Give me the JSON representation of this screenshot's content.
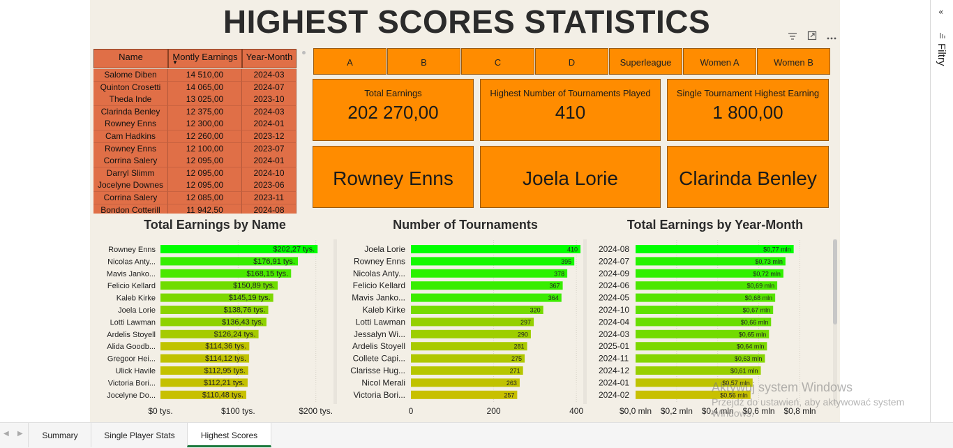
{
  "report": {
    "title": "HIGHEST SCORES STATISTICS"
  },
  "table": {
    "headers": [
      "Name",
      "Montly Earnings",
      "Year-Month"
    ],
    "rows": [
      [
        "Salome Diben",
        "14 510,00",
        "2024-03"
      ],
      [
        "Quinton Crosetti",
        "14 065,00",
        "2024-07"
      ],
      [
        "Theda Inde",
        "13 025,00",
        "2023-10"
      ],
      [
        "Clarinda Benley",
        "12 375,00",
        "2024-03"
      ],
      [
        "Rowney Enns",
        "12 300,00",
        "2024-01"
      ],
      [
        "Cam Hadkins",
        "12 260,00",
        "2023-12"
      ],
      [
        "Rowney Enns",
        "12 100,00",
        "2023-07"
      ],
      [
        "Corrina Salery",
        "12 095,00",
        "2024-01"
      ],
      [
        "Darryl Slimm",
        "12 095,00",
        "2024-10"
      ],
      [
        "Jocelyne Downes",
        "12 095,00",
        "2023-06"
      ],
      [
        "Corrina Salery",
        "12 085,00",
        "2023-11"
      ],
      [
        "Bondon Cotterill",
        "11 942,50",
        "2024-08"
      ]
    ]
  },
  "slicer": {
    "options": [
      "A",
      "B",
      "C",
      "D",
      "Superleague",
      "Women A",
      "Women B"
    ]
  },
  "cards": [
    {
      "label": "Total Earnings",
      "value": "202 270,00"
    },
    {
      "label": "Highest Number of Tournaments Played",
      "value": "410"
    },
    {
      "label": "Single Tournament Highest Earning",
      "value": "1 800,00"
    }
  ],
  "name_cards": [
    "Rowney Enns",
    "Joela Lorie",
    "Clarinda Benley"
  ],
  "chart_data": [
    {
      "type": "bar",
      "title": "Total Earnings by Name",
      "orientation": "horizontal",
      "categories": [
        "Rowney Enns",
        "Nicolas Anty...",
        "Mavis Janko...",
        "Felicio Kellard",
        "Kaleb Kirke",
        "Joela Lorie",
        "Lotti Lawman",
        "Ardelis Stoyell",
        "Alida Goodb...",
        "Gregoor Hei...",
        "Ulick Havile",
        "Victoria Bori...",
        "Jocelyne Do..."
      ],
      "values": [
        202.27,
        176.91,
        168.15,
        150.89,
        145.19,
        138.76,
        136.43,
        126.24,
        114.36,
        114.12,
        112.95,
        112.21,
        110.48
      ],
      "data_labels": [
        "$202,27 tys.",
        "$176,91 tys.",
        "$168,15 tys.",
        "$150,89 tys.",
        "$145,19 tys.",
        "$138,76 tys.",
        "$136,43 tys.",
        "$126,24 tys.",
        "$114,36 tys.",
        "$114,12 tys.",
        "$112,95 tys.",
        "$112,21 tys.",
        "$110,48 tys."
      ],
      "ticks": [
        "$0 tys.",
        "$100 tys.",
        "$200 tys."
      ],
      "tick_values": [
        0,
        100,
        200
      ],
      "xlim": [
        0,
        220
      ]
    },
    {
      "type": "bar",
      "title": "Number of Tournaments",
      "orientation": "horizontal",
      "categories": [
        "Joela Lorie",
        "Rowney Enns",
        "Nicolas Anty...",
        "Felicio Kellard",
        "Mavis Janko...",
        "Kaleb Kirke",
        "Lotti Lawman",
        "Jessalyn Wi...",
        "Ardelis Stoyell",
        "Collete Capi...",
        "Clarisse Hug...",
        "Nicol Merali",
        "Victoria Bori..."
      ],
      "values": [
        410,
        395,
        378,
        367,
        364,
        320,
        297,
        290,
        281,
        275,
        271,
        263,
        257
      ],
      "data_labels": [
        "410",
        "395",
        "378",
        "367",
        "364",
        "320",
        "297",
        "290",
        "281",
        "275",
        "271",
        "263",
        "257"
      ],
      "ticks": [
        "0",
        "200",
        "400"
      ],
      "tick_values": [
        0,
        200,
        400
      ],
      "xlim": [
        0,
        420
      ]
    },
    {
      "type": "bar",
      "title": "Total Earnings by Year-Month",
      "orientation": "horizontal",
      "categories": [
        "2024-08",
        "2024-07",
        "2024-09",
        "2024-06",
        "2024-05",
        "2024-10",
        "2024-04",
        "2024-03",
        "2025-01",
        "2024-11",
        "2024-12",
        "2024-01",
        "2024-02"
      ],
      "values": [
        0.77,
        0.73,
        0.72,
        0.69,
        0.68,
        0.67,
        0.66,
        0.65,
        0.64,
        0.63,
        0.61,
        0.57,
        0.56
      ],
      "data_labels": [
        "$0,77 mln",
        "$0,73 mln",
        "$0,72 mln",
        "$0,69 mln",
        "$0,68 mln",
        "$0,67 mln",
        "$0,66 mln",
        "$0,65 mln",
        "$0,64 mln",
        "$0,63 mln",
        "$0,61 mln",
        "$0,57 mln",
        "$0,56 mln"
      ],
      "ticks": [
        "$0,0 mln",
        "$0,2 mln",
        "$0,4 mln",
        "$0,6 mln",
        "$0,8 mln"
      ],
      "tick_values": [
        0,
        0.2,
        0.4,
        0.6,
        0.8
      ],
      "xlim": [
        0,
        0.88
      ]
    }
  ],
  "colors": {
    "canvas": "#f3efe6",
    "table_cell": "#e06f47",
    "card": "#ff8c00",
    "bar_high": "#00ff00",
    "bar_low": "#c8c000"
  },
  "tabs": [
    {
      "label": "Summary",
      "active": false
    },
    {
      "label": "Single Player Stats",
      "active": false
    },
    {
      "label": "Highest Scores",
      "active": true
    }
  ],
  "filters_pane": {
    "label": "Filtry"
  },
  "watermark": {
    "line1": "Aktywuj system Windows",
    "line2": "Przejdź do ustawień, aby aktywować system",
    "line3": "Windows."
  },
  "icons": [
    "filter-icon",
    "focus-mode-icon",
    "more-options-icon",
    "collapse-pane-icon",
    "sort-descending-icon"
  ]
}
